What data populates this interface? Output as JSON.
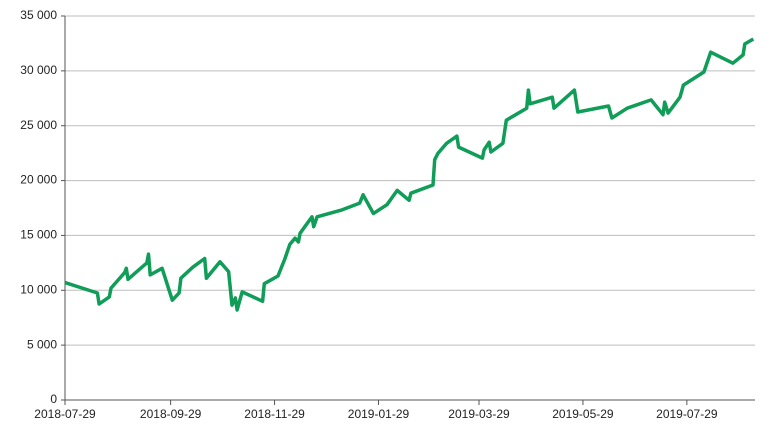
{
  "chart_data": {
    "type": "line",
    "x": [
      "2018-07-29",
      "2018-08-17",
      "2018-08-18",
      "2018-08-24",
      "2018-08-25",
      "2018-09-02",
      "2018-09-03",
      "2018-09-04",
      "2018-09-15",
      "2018-09-16",
      "2018-09-17",
      "2018-09-24",
      "2018-09-30",
      "2018-10-04",
      "2018-10-05",
      "2018-10-12",
      "2018-10-19",
      "2018-10-20",
      "2018-10-28",
      "2018-11-02",
      "2018-11-04",
      "2018-11-06",
      "2018-11-07",
      "2018-11-10",
      "2018-11-22",
      "2018-11-23",
      "2018-12-01",
      "2018-12-05",
      "2018-12-08",
      "2018-12-11",
      "2018-12-13",
      "2018-12-14",
      "2018-12-21",
      "2018-12-22",
      "2018-12-24",
      "2019-01-07",
      "2019-01-18",
      "2019-01-20",
      "2019-01-26",
      "2019-02-03",
      "2019-02-09",
      "2019-02-16",
      "2019-02-17",
      "2019-03-02",
      "2019-03-03",
      "2019-03-05",
      "2019-03-10",
      "2019-03-16",
      "2019-03-17",
      "2019-03-31",
      "2019-04-01",
      "2019-04-04",
      "2019-04-05",
      "2019-04-12",
      "2019-04-14",
      "2019-04-26",
      "2019-04-27",
      "2019-04-28",
      "2019-05-11",
      "2019-05-12",
      "2019-05-24",
      "2019-05-26",
      "2019-06-13",
      "2019-06-15",
      "2019-06-24",
      "2019-07-08",
      "2019-07-15",
      "2019-07-16",
      "2019-07-18",
      "2019-07-25",
      "2019-07-27",
      "2019-08-08",
      "2019-08-12",
      "2019-08-25",
      "2019-08-31",
      "2019-09-01",
      "2019-09-06"
    ],
    "series": [
      {
        "color": "#0f9d58",
        "values": [
          10700,
          9750,
          8750,
          9400,
          10200,
          11600,
          12000,
          11000,
          12500,
          13300,
          11400,
          12000,
          9100,
          9750,
          11100,
          12100,
          12900,
          11100,
          12600,
          11700,
          8650,
          9300,
          8200,
          9850,
          9000,
          10600,
          11300,
          12850,
          14200,
          14750,
          14400,
          15200,
          16700,
          15800,
          16700,
          17300,
          17950,
          18700,
          17000,
          17800,
          19100,
          18200,
          18850,
          19600,
          21900,
          22500,
          23400,
          24050,
          23050,
          22050,
          22800,
          23500,
          22600,
          23400,
          25500,
          26600,
          28250,
          27000,
          27600,
          26600,
          28250,
          26250,
          26800,
          25700,
          26600,
          27350,
          26000,
          27150,
          26150,
          27600,
          28700,
          29900,
          31700,
          30700,
          31450,
          32450,
          32900
        ]
      }
    ],
    "xlim": [
      "2018-07-29",
      "2019-09-07"
    ],
    "xticks": [
      "2018-07-29",
      "2018-09-29",
      "2018-11-29",
      "2019-01-29",
      "2019-03-29",
      "2019-05-29",
      "2019-07-29"
    ],
    "ylim": [
      0,
      35000
    ],
    "yticks": [
      0,
      {
        "value": 5000,
        "label": "5 000"
      },
      {
        "value": 10000,
        "label": "10 000"
      },
      {
        "value": 15000,
        "label": "15 000"
      },
      {
        "value": 20000,
        "label": "20 000"
      },
      {
        "value": 25000,
        "label": "25 000"
      },
      {
        "value": 30000,
        "label": "30 000"
      },
      {
        "value": 35000,
        "label": "35 000"
      }
    ],
    "grid": true
  }
}
